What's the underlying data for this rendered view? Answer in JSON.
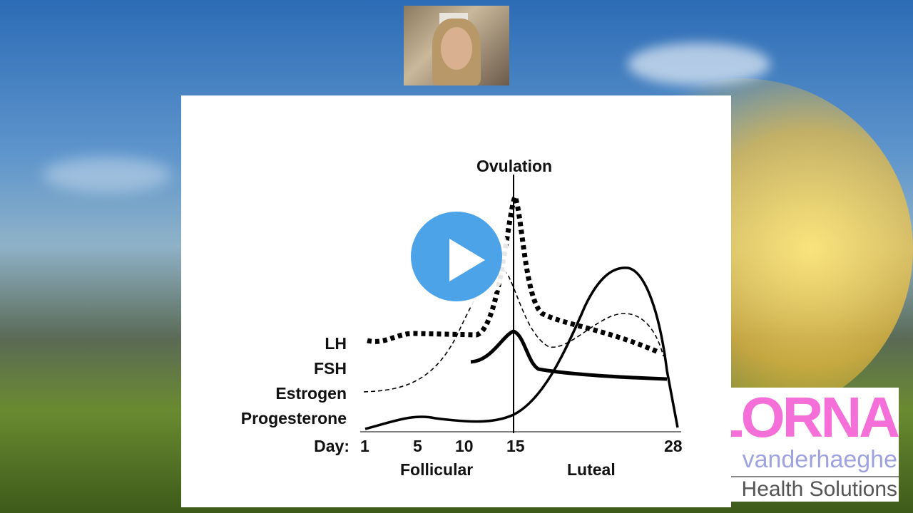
{
  "slide": {
    "title": "Ovulation",
    "legend": [
      "LH",
      "FSH",
      "Estrogen",
      "Progesterone"
    ],
    "day_label": "Day:",
    "days": [
      "1",
      "5",
      "10",
      "15",
      "28"
    ],
    "phases": [
      "Follicular",
      "Luteal"
    ]
  },
  "logo": {
    "name": "LORNA",
    "surname": "vanderhaeghe",
    "tagline": "Health Solutions"
  },
  "player": {
    "play_icon": "play-icon",
    "accent": "#4da3e8"
  }
}
